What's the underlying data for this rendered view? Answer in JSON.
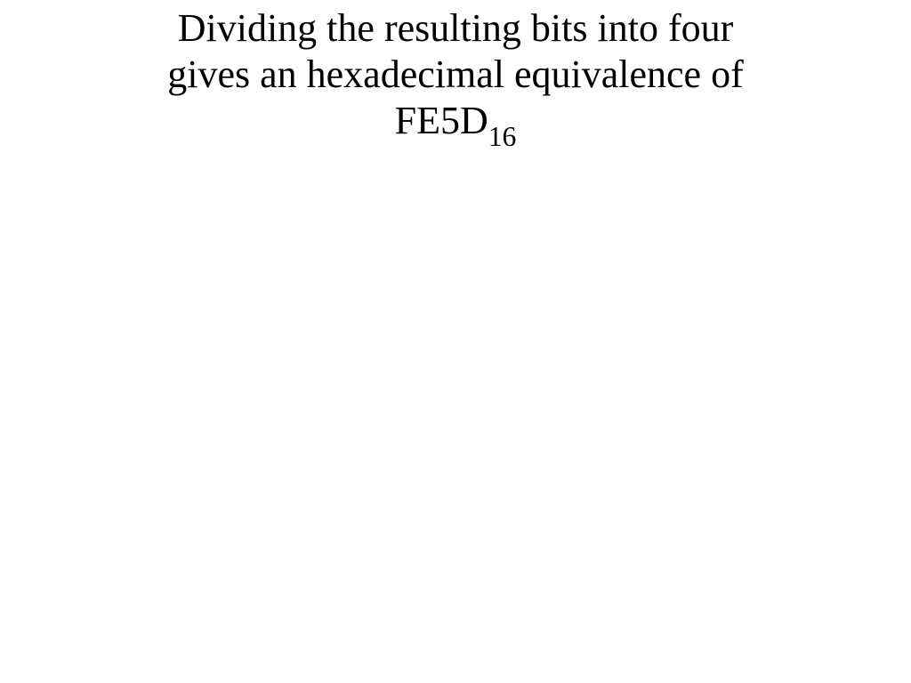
{
  "slide": {
    "title_line1": "Dividing the resulting bits into four",
    "title_line2": "gives an hexadecimal equivalence of",
    "hex_value": "FE5D",
    "hex_base": "16",
    "text_color": "#000000",
    "background_color": "#ffffff",
    "font_family": "Times New Roman",
    "font_size_pt": 44,
    "subscript_scale": 0.72
  }
}
